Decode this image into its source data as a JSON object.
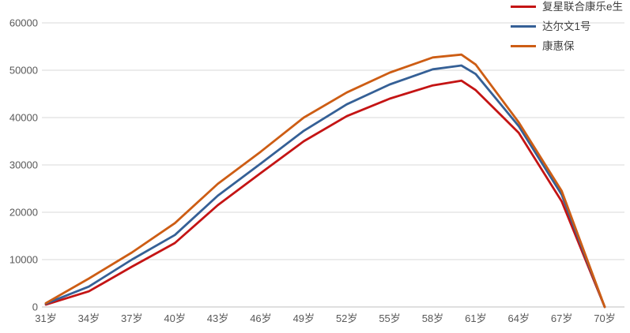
{
  "colors": {
    "background": "#ffffff",
    "gridline": "#d9d9d9",
    "axis_line": "#bfbfbf",
    "tick_label": "#595959",
    "legend_text": "#3f3f3f"
  },
  "chart_data": {
    "type": "line",
    "title": "",
    "xlabel": "",
    "ylabel": "",
    "grid": "horizontal",
    "legend_position": "top-right",
    "x_axis": {
      "range": [
        31,
        70
      ],
      "tick_ages": [
        31,
        34,
        37,
        40,
        43,
        46,
        49,
        52,
        55,
        58,
        61,
        64,
        67,
        70
      ],
      "tick_labels": [
        "31岁",
        "34岁",
        "37岁",
        "40岁",
        "43岁",
        "46岁",
        "49岁",
        "52岁",
        "55岁",
        "58岁",
        "61岁",
        "64岁",
        "67岁",
        "70岁"
      ]
    },
    "y_axis": {
      "range": [
        0,
        60000
      ],
      "ticks": [
        0,
        10000,
        20000,
        30000,
        40000,
        50000,
        60000
      ],
      "tick_labels": [
        "0",
        "10000",
        "20000",
        "30000",
        "40000",
        "50000",
        "60000"
      ]
    },
    "ages": [
      31,
      34,
      37,
      40,
      43,
      46,
      49,
      52,
      55,
      58,
      60,
      61,
      64,
      67,
      70
    ],
    "series": [
      {
        "name": "复星联合康乐e生",
        "color": "#c41414",
        "values": [
          500,
          3300,
          8500,
          13500,
          21500,
          28300,
          35000,
          40300,
          44000,
          46800,
          47800,
          45800,
          36800,
          22300,
          0
        ]
      },
      {
        "name": "达尔文1号",
        "color": "#356096",
        "values": [
          700,
          4300,
          10000,
          15200,
          23500,
          30300,
          37200,
          42800,
          47000,
          50200,
          51000,
          49200,
          38200,
          23700,
          0
        ]
      },
      {
        "name": "康惠保",
        "color": "#cd5d14",
        "values": [
          800,
          6000,
          11500,
          17700,
          26000,
          32800,
          40000,
          45300,
          49500,
          52700,
          53300,
          51200,
          39000,
          24500,
          0
        ]
      }
    ]
  }
}
